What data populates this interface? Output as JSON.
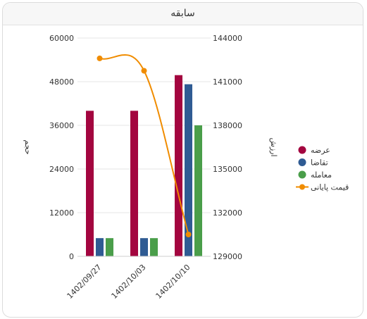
{
  "panel": {
    "title": "سابقه"
  },
  "chart_data": {
    "type": "bar",
    "categories": [
      "1402/09/27",
      "1402/10/03",
      "1402/10/10"
    ],
    "series": [
      {
        "name": "عرضه",
        "kind": "bar",
        "axis": "left",
        "color": "#a3053f",
        "values": [
          40000,
          40000,
          49800
        ]
      },
      {
        "name": "تقاضا",
        "kind": "bar",
        "axis": "left",
        "color": "#2f5b93",
        "values": [
          5000,
          5000,
          47300
        ]
      },
      {
        "name": "معامله",
        "kind": "bar",
        "axis": "left",
        "color": "#4a9e4a",
        "values": [
          5000,
          5000,
          36000
        ]
      },
      {
        "name": "قیمت پایانی",
        "kind": "line",
        "axis": "right",
        "color": "#f08c00",
        "values": [
          142600,
          141750,
          130500
        ]
      }
    ],
    "y_left": {
      "label": "حجم",
      "ticks": [
        0,
        12000,
        24000,
        36000,
        48000,
        60000
      ],
      "range": [
        0,
        60000
      ]
    },
    "y_right": {
      "label": "ارزش",
      "ticks": [
        129000,
        132000,
        135000,
        138000,
        141000,
        144000
      ],
      "range": [
        129000,
        144000
      ]
    },
    "grid": true,
    "legend_position": "right"
  }
}
